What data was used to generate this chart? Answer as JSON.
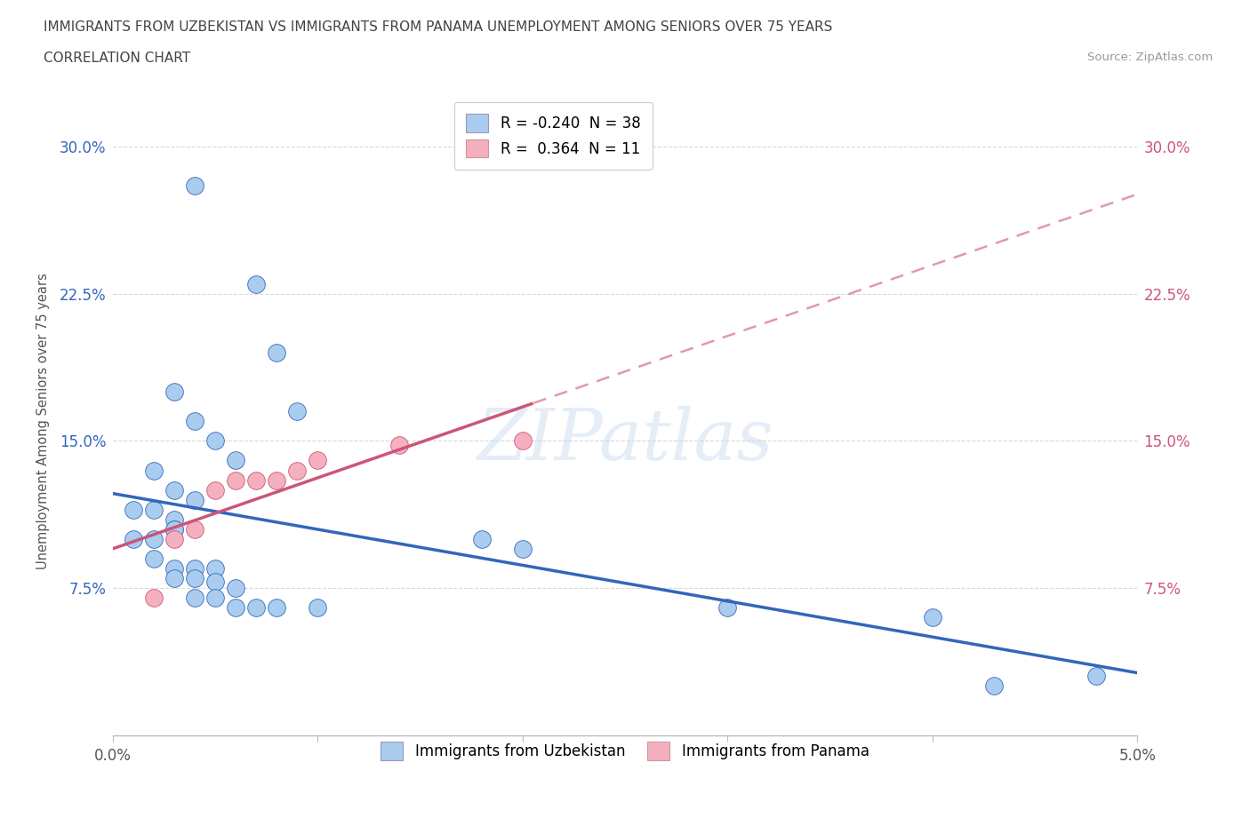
{
  "title_line1": "IMMIGRANTS FROM UZBEKISTAN VS IMMIGRANTS FROM PANAMA UNEMPLOYMENT AMONG SENIORS OVER 75 YEARS",
  "title_line2": "CORRELATION CHART",
  "source_text": "Source: ZipAtlas.com",
  "ylabel": "Unemployment Among Seniors over 75 years",
  "xlim": [
    0.0,
    0.05
  ],
  "ylim": [
    0.0,
    0.32
  ],
  "xticks": [
    0.0,
    0.01,
    0.02,
    0.03,
    0.04,
    0.05
  ],
  "xticklabels": [
    "0.0%",
    "",
    "",
    "",
    "",
    "5.0%"
  ],
  "yticks": [
    0.075,
    0.15,
    0.225,
    0.3
  ],
  "yticklabels_blue": [
    "7.5%",
    "15.0%",
    "22.5%",
    "30.0%"
  ],
  "yticklabels_pink": [
    "7.5%",
    "15.0%",
    "22.5%",
    "30.0%"
  ],
  "watermark": "ZIPatlas",
  "uzbekistan_color": "#aaccee",
  "panama_color": "#f5b0c0",
  "uzbekistan_line_color": "#3366bb",
  "panama_line_color": "#cc5577",
  "uzbekistan_R": -0.24,
  "uzbekistan_N": 38,
  "panama_R": 0.364,
  "panama_N": 11,
  "uzbekistan_x": [
    0.004,
    0.007,
    0.008,
    0.009,
    0.003,
    0.004,
    0.005,
    0.006,
    0.002,
    0.003,
    0.004,
    0.001,
    0.002,
    0.003,
    0.001,
    0.002,
    0.003,
    0.003,
    0.002,
    0.003,
    0.004,
    0.005,
    0.003,
    0.004,
    0.005,
    0.006,
    0.004,
    0.005,
    0.006,
    0.007,
    0.008,
    0.01,
    0.018,
    0.02,
    0.03,
    0.04,
    0.043,
    0.048
  ],
  "uzbekistan_y": [
    0.28,
    0.23,
    0.195,
    0.165,
    0.175,
    0.16,
    0.15,
    0.14,
    0.135,
    0.125,
    0.12,
    0.115,
    0.115,
    0.11,
    0.1,
    0.1,
    0.105,
    0.105,
    0.09,
    0.085,
    0.085,
    0.085,
    0.08,
    0.08,
    0.078,
    0.075,
    0.07,
    0.07,
    0.065,
    0.065,
    0.065,
    0.065,
    0.1,
    0.095,
    0.065,
    0.06,
    0.025,
    0.03
  ],
  "panama_x": [
    0.002,
    0.003,
    0.004,
    0.005,
    0.006,
    0.007,
    0.008,
    0.009,
    0.01,
    0.014,
    0.02
  ],
  "panama_y": [
    0.07,
    0.1,
    0.105,
    0.125,
    0.13,
    0.13,
    0.13,
    0.135,
    0.14,
    0.148,
    0.15
  ],
  "background_color": "#ffffff",
  "grid_color": "#d8d8d8"
}
